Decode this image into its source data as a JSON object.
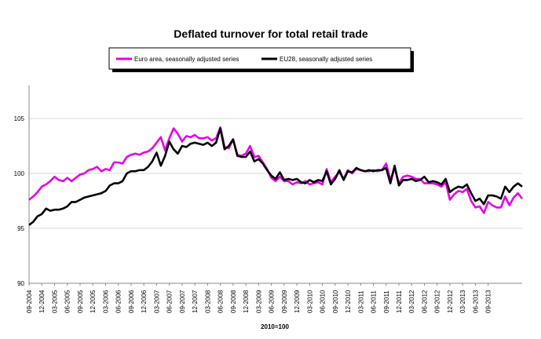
{
  "chart_data": {
    "type": "line",
    "title": "Deflated turnover for total retail trade",
    "xlabel": "2010=100",
    "ylabel": "",
    "ylim": [
      90,
      108
    ],
    "yticks": [
      90,
      95,
      100,
      105
    ],
    "grid": "horizontal",
    "legend_position": "top",
    "x_tick_labels": [
      "09-2004",
      "12-2004",
      "03-2005",
      "06-2005",
      "09-2005",
      "12-2005",
      "03-2006",
      "06-2006",
      "09-2006",
      "12-2006",
      "03-2007",
      "06-2007",
      "09-2007",
      "12-2007",
      "03-2008",
      "06-2008",
      "09-2008",
      "12-2008",
      "03-2009",
      "06-2009",
      "09-2009",
      "12-2009",
      "03-2010",
      "06-2010",
      "09-2010",
      "12-2010",
      "03-2011",
      "06-2011",
      "09-2011",
      "12-2011",
      "03-2012",
      "06-2012",
      "09-2012",
      "12-2012",
      "03-2013",
      "06-2013",
      "09-2013"
    ],
    "series": [
      {
        "name": "Euro area, seasonally adjusted series",
        "color": "#e600e6",
        "values": [
          97.6,
          97.9,
          98.3,
          98.8,
          99.0,
          99.3,
          99.7,
          99.4,
          99.3,
          99.6,
          99.3,
          99.6,
          99.9,
          100.0,
          100.3,
          100.4,
          100.6,
          100.2,
          100.4,
          100.3,
          101.0,
          101.0,
          100.9,
          101.5,
          101.7,
          101.8,
          101.7,
          101.9,
          102.0,
          102.3,
          102.8,
          103.3,
          102.1,
          103.2,
          104.1,
          103.6,
          102.9,
          103.4,
          103.3,
          103.5,
          103.2,
          103.2,
          103.3,
          103.0,
          103.2,
          104.2,
          102.4,
          102.3,
          103.1,
          101.7,
          101.6,
          101.8,
          102.5,
          101.5,
          101.6,
          101.0,
          100.4,
          99.6,
          99.3,
          99.7,
          99.3,
          99.3,
          99.0,
          99.2,
          99.1,
          99.3,
          99.0,
          99.1,
          99.2,
          99.0,
          100.4,
          99.2,
          99.7,
          100.1,
          99.5,
          100.3,
          100.0,
          100.4,
          100.3,
          100.2,
          100.2,
          100.3,
          100.2,
          100.3,
          100.9,
          99.4,
          100.5,
          99.1,
          99.7,
          99.8,
          99.7,
          99.5,
          99.5,
          99.1,
          99.1,
          99.1,
          99.0,
          98.8,
          99.2,
          97.6,
          98.1,
          98.4,
          98.3,
          98.6,
          97.5,
          96.9,
          97.0,
          96.4,
          97.4,
          97.1,
          96.9,
          96.9,
          97.9,
          97.1,
          97.8,
          98.2,
          97.7
        ]
      },
      {
        "name": "EU28, seasonally adjusted series",
        "color": "#000000",
        "values": [
          95.3,
          95.6,
          96.1,
          96.3,
          96.8,
          96.6,
          96.7,
          96.7,
          96.8,
          97.0,
          97.4,
          97.4,
          97.6,
          97.8,
          97.9,
          98.0,
          98.1,
          98.2,
          98.4,
          98.9,
          99.1,
          99.1,
          99.3,
          100.0,
          100.2,
          100.2,
          100.3,
          100.3,
          100.6,
          101.1,
          101.9,
          100.7,
          101.6,
          102.9,
          102.2,
          101.8,
          102.5,
          102.4,
          102.7,
          102.8,
          102.7,
          102.6,
          102.8,
          102.5,
          102.8,
          104.1,
          102.2,
          102.5,
          103.1,
          101.6,
          101.5,
          101.5,
          102.0,
          101.1,
          101.3,
          100.9,
          100.3,
          99.8,
          99.5,
          100.1,
          99.4,
          99.5,
          99.4,
          99.5,
          99.2,
          99.1,
          99.4,
          99.2,
          99.4,
          99.3,
          100.2,
          99.0,
          99.5,
          100.3,
          99.4,
          100.2,
          100.1,
          100.5,
          100.3,
          100.2,
          100.3,
          100.2,
          100.3,
          100.3,
          100.5,
          99.1,
          100.7,
          98.9,
          99.4,
          99.4,
          99.5,
          99.3,
          99.4,
          99.7,
          99.2,
          99.3,
          99.2,
          99.0,
          99.5,
          98.3,
          98.6,
          98.8,
          98.7,
          99.0,
          98.2,
          97.5,
          97.7,
          97.2,
          98.0,
          98.0,
          97.9,
          97.7,
          98.8,
          98.3,
          98.8,
          99.1,
          98.8
        ]
      }
    ]
  }
}
